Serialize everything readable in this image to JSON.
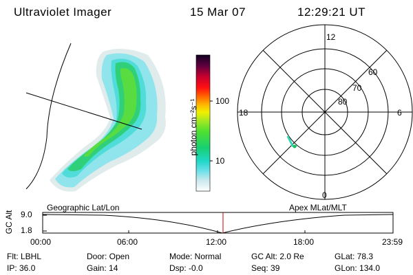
{
  "header": {
    "instrument": "Ultraviolet Imager",
    "date": "15 Mar 07",
    "time": "12:29:21 UT"
  },
  "colorbar": {
    "unit_label": "photon cm⁻²s⁻¹",
    "ticks": [
      "100",
      "10"
    ]
  },
  "polar_plot": {
    "mlt_labels": [
      "12",
      "18",
      "6",
      "0"
    ],
    "lat_labels": [
      "60",
      "70",
      "80"
    ]
  },
  "timeline": {
    "ylabel": "GC Alt",
    "y_ticks": [
      "9.0",
      "1.8"
    ],
    "left_title": "Geographic Lat/Lon",
    "right_title": "Apex  MLat/MLT",
    "x_ticks": [
      "00:00",
      "06:00",
      "12:00",
      "18:00",
      "23:59"
    ],
    "marker_color": "#cc0000"
  },
  "info": {
    "flt": "Flt: LBHL",
    "ip": "IP: 36.0",
    "door": "Door: Open",
    "gain": "Gain: 14",
    "mode": "Mode: Normal",
    "dsp": "Dsp:   -0.0",
    "gcalt": "GC Alt: 2.0 Re",
    "seq": "Seq: 39",
    "glat": "GLat:  78.3",
    "glon": "GLon: 134.0"
  }
}
